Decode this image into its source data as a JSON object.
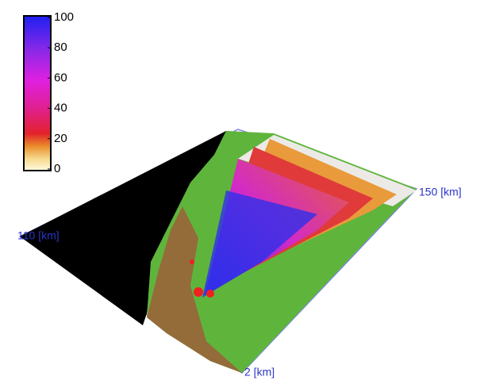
{
  "colorbar": {
    "lim": [
      0,
      100
    ],
    "ticks": [
      0,
      20,
      40,
      60,
      80,
      100
    ]
  },
  "axes": {
    "x_label": "150 [km]",
    "y_label": "110 [km]",
    "z_label": "2 [km]"
  }
}
